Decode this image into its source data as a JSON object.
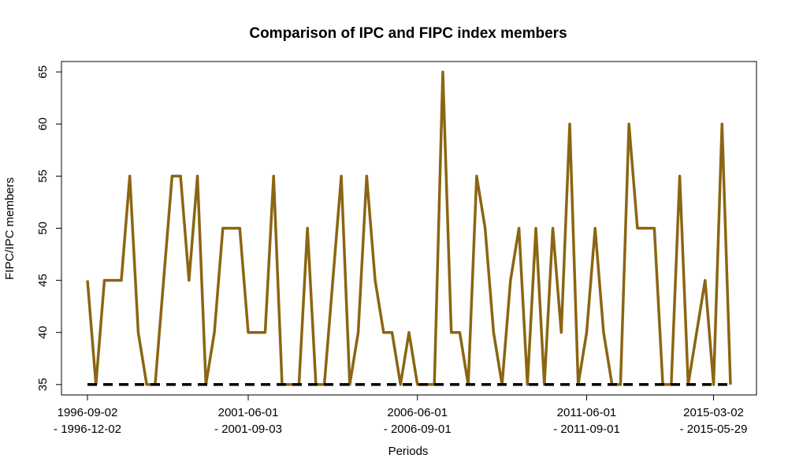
{
  "chart_data": {
    "type": "line",
    "title": "Comparison of IPC and FIPC index members",
    "xlabel": "Periods",
    "ylabel": "FIPC/IPC members",
    "ylim": [
      34,
      66
    ],
    "yticks": [
      35,
      40,
      45,
      50,
      55,
      60,
      65
    ],
    "xticks": [
      {
        "index": 0,
        "line1": "1996-09-02",
        "line2": "- 1996-12-02"
      },
      {
        "index": 19,
        "line1": "2001-06-01",
        "line2": "- 2001-09-03"
      },
      {
        "index": 39,
        "line1": "2006-06-01",
        "line2": "- 2006-09-01"
      },
      {
        "index": 59,
        "line1": "2011-06-01",
        "line2": "- 2011-09-01"
      },
      {
        "index": 74,
        "line1": "2015-03-02",
        "line2": "- 2015-05-29"
      }
    ],
    "grid": false,
    "series": [
      {
        "values": [
          45,
          35,
          45,
          45,
          45,
          55,
          40,
          35,
          35,
          45,
          55,
          55,
          45,
          55,
          35,
          40,
          50,
          50,
          50,
          40,
          40,
          40,
          55,
          35,
          35,
          35,
          50,
          35,
          35,
          45,
          55,
          35,
          40,
          55,
          45,
          40,
          40,
          35,
          40,
          35,
          35,
          35,
          65,
          40,
          40,
          35,
          55,
          50,
          40,
          35,
          45,
          50,
          35,
          50,
          35,
          50,
          40,
          60,
          35,
          40,
          50,
          40,
          35,
          35,
          60,
          50,
          50,
          50,
          35,
          35,
          55,
          35,
          40,
          45,
          35,
          60,
          35
        ],
        "color": "#8B6512",
        "style": "solid"
      },
      {
        "values": [
          35,
          35,
          35,
          35,
          35,
          35,
          35,
          35,
          35,
          35,
          35,
          35,
          35,
          35,
          35,
          35,
          35,
          35,
          35,
          35,
          35,
          35,
          35,
          35,
          35,
          35,
          35,
          35,
          35,
          35,
          35,
          35,
          35,
          35,
          35,
          35,
          35,
          35,
          35,
          35,
          35,
          35,
          35,
          35,
          35,
          35,
          35,
          35,
          35,
          35,
          35,
          35,
          35,
          35,
          35,
          35,
          35,
          35,
          35,
          35,
          35,
          35,
          35,
          35,
          35,
          35,
          35,
          35,
          35,
          35,
          35,
          35,
          35,
          35,
          35,
          35,
          35
        ],
        "color": "#000000",
        "style": "dashed"
      }
    ]
  }
}
